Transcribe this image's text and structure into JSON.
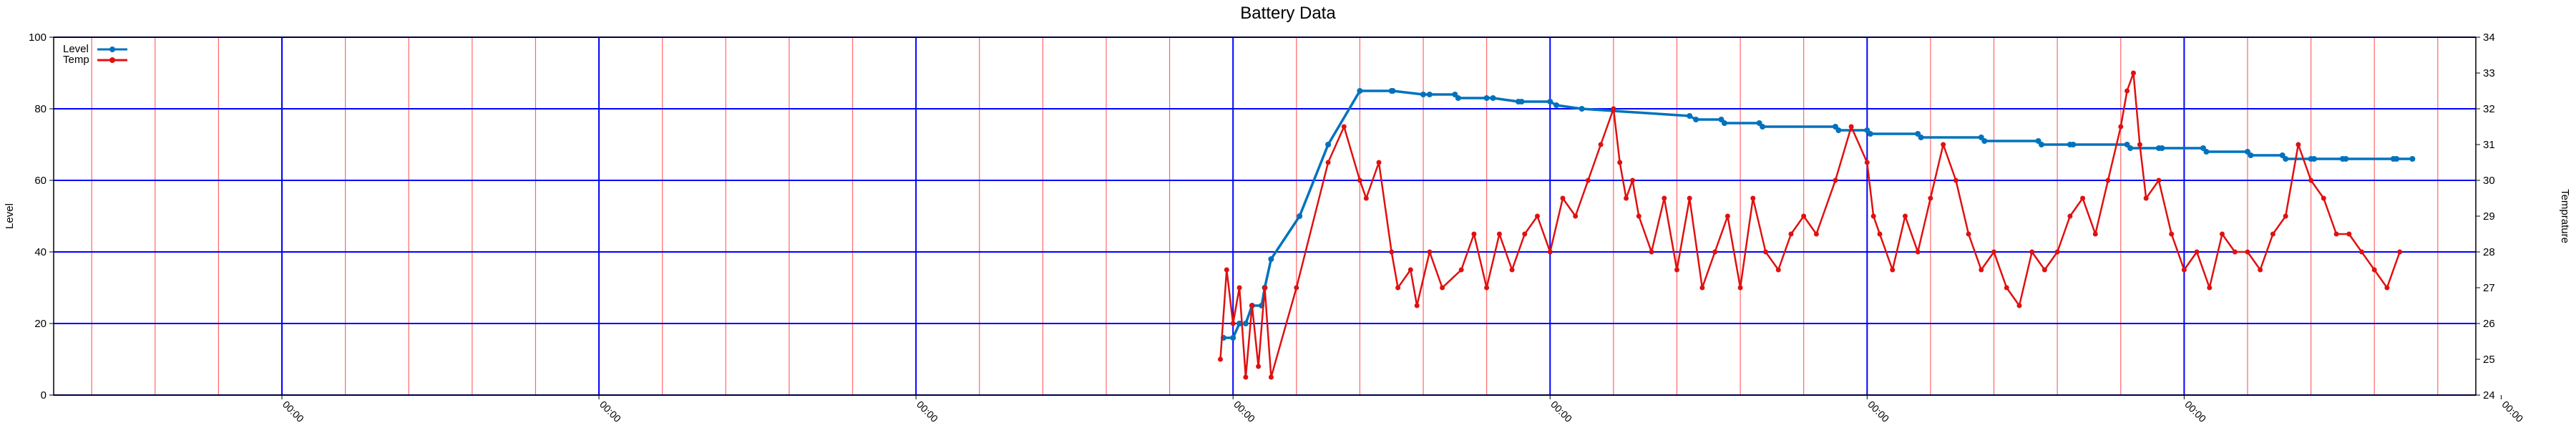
{
  "chart_data": {
    "type": "line",
    "title": "Battery Data",
    "xlabel": "",
    "ylabel": "Level",
    "y2label": "Temprature",
    "ylim": [
      0,
      100
    ],
    "y2lim": [
      24,
      34
    ],
    "xlim": [
      -3.6,
      34.6
    ],
    "x_note": "x values in major-gridline units; each major tick is labelled 00:00",
    "x_tick_values": [
      0,
      5,
      10,
      15,
      20,
      25,
      30,
      35
    ],
    "x_tick_labels": [
      "00:00",
      "00:00",
      "00:00",
      "00:00",
      "00:00",
      "00:00",
      "00:00",
      "00:00"
    ],
    "y_ticks": [
      0,
      20,
      40,
      60,
      80,
      100
    ],
    "y2_ticks": [
      24,
      25,
      26,
      27,
      28,
      29,
      30,
      31,
      32,
      33,
      34
    ],
    "minor_x_gridlines": true,
    "grid": true,
    "legend_position": "top-left",
    "colors": {
      "level": "#0072bd",
      "temp": "#e01010",
      "major_grid": "#0000ff",
      "minor_grid": "#ff6666"
    },
    "series": [
      {
        "name": "Level",
        "axis": "left",
        "color": "#0072bd",
        "x": [
          14.85,
          15.0,
          15.1,
          15.2,
          15.3,
          15.45,
          15.5,
          15.6,
          16.05,
          16.5,
          17.0,
          17.5,
          17.52,
          18.0,
          18.1,
          18.5,
          18.55,
          19.0,
          19.1,
          19.5,
          19.55,
          20.0,
          20.1,
          20.5,
          22.2,
          22.3,
          22.7,
          22.75,
          23.3,
          23.35,
          24.5,
          24.55,
          25.0,
          25.05,
          25.8,
          25.85,
          26.8,
          26.85,
          27.7,
          27.75,
          28.2,
          28.25,
          29.1,
          29.15,
          29.6,
          29.65,
          30.3,
          30.35,
          31.0,
          31.05,
          31.55,
          31.6,
          32.0,
          32.05,
          32.5,
          32.55,
          33.3,
          33.35,
          33.6
        ],
        "y": [
          16,
          16,
          20,
          20,
          25,
          25,
          30,
          38,
          50,
          70,
          85,
          85,
          85,
          84,
          84,
          84,
          83,
          83,
          83,
          82,
          82,
          82,
          81,
          80,
          78,
          77,
          77,
          76,
          76,
          75,
          75,
          74,
          74,
          73,
          73,
          72,
          72,
          71,
          71,
          70,
          70,
          70,
          70,
          69,
          69,
          69,
          69,
          68,
          68,
          67,
          67,
          66,
          66,
          66,
          66,
          66,
          66,
          66,
          66
        ]
      },
      {
        "name": "Temp",
        "axis": "right",
        "color": "#e01010",
        "x": [
          14.8,
          14.9,
          15.0,
          15.1,
          15.2,
          15.3,
          15.4,
          15.5,
          15.6,
          16.0,
          16.5,
          16.75,
          17.0,
          17.1,
          17.3,
          17.5,
          17.6,
          17.8,
          17.9,
          18.1,
          18.3,
          18.6,
          18.8,
          19.0,
          19.2,
          19.4,
          19.6,
          19.8,
          20.0,
          20.2,
          20.4,
          20.6,
          20.8,
          21.0,
          21.1,
          21.2,
          21.3,
          21.4,
          21.6,
          21.8,
          22.0,
          22.2,
          22.4,
          22.6,
          22.8,
          23.0,
          23.2,
          23.4,
          23.6,
          23.8,
          24.0,
          24.2,
          24.5,
          24.75,
          25.0,
          25.1,
          25.2,
          25.4,
          25.6,
          25.8,
          26.0,
          26.2,
          26.4,
          26.6,
          26.8,
          27.0,
          27.2,
          27.4,
          27.6,
          27.8,
          28.0,
          28.2,
          28.4,
          28.6,
          28.8,
          29.0,
          29.1,
          29.2,
          29.3,
          29.4,
          29.6,
          29.8,
          30.0,
          30.2,
          30.4,
          30.6,
          30.8,
          31.0,
          31.2,
          31.4,
          31.6,
          31.8,
          32.0,
          32.2,
          32.4,
          32.6,
          32.8,
          33.0,
          33.2,
          33.4
        ],
        "y": [
          25.0,
          27.5,
          26.0,
          27.0,
          24.5,
          26.5,
          24.8,
          27.0,
          24.5,
          27.0,
          30.5,
          31.5,
          30.0,
          29.5,
          30.5,
          28.0,
          27.0,
          27.5,
          26.5,
          28.0,
          27.0,
          27.5,
          28.5,
          27.0,
          28.5,
          27.5,
          28.5,
          29.0,
          28.0,
          29.5,
          29.0,
          30.0,
          31.0,
          32.0,
          30.5,
          29.5,
          30.0,
          29.0,
          28.0,
          29.5,
          27.5,
          29.5,
          27.0,
          28.0,
          29.0,
          27.0,
          29.5,
          28.0,
          27.5,
          28.5,
          29.0,
          28.5,
          30.0,
          31.5,
          30.5,
          29.0,
          28.5,
          27.5,
          29.0,
          28.0,
          29.5,
          31.0,
          30.0,
          28.5,
          27.5,
          28.0,
          27.0,
          26.5,
          28.0,
          27.5,
          28.0,
          29.0,
          29.5,
          28.5,
          30.0,
          31.5,
          32.5,
          33.0,
          31.0,
          29.5,
          30.0,
          28.5,
          27.5,
          28.0,
          27.0,
          28.5,
          28.0,
          28.0,
          27.5,
          28.5,
          29.0,
          31.0,
          30.0,
          29.5,
          28.5,
          28.5,
          28.0,
          27.5,
          27.0,
          28.0
        ]
      }
    ]
  }
}
